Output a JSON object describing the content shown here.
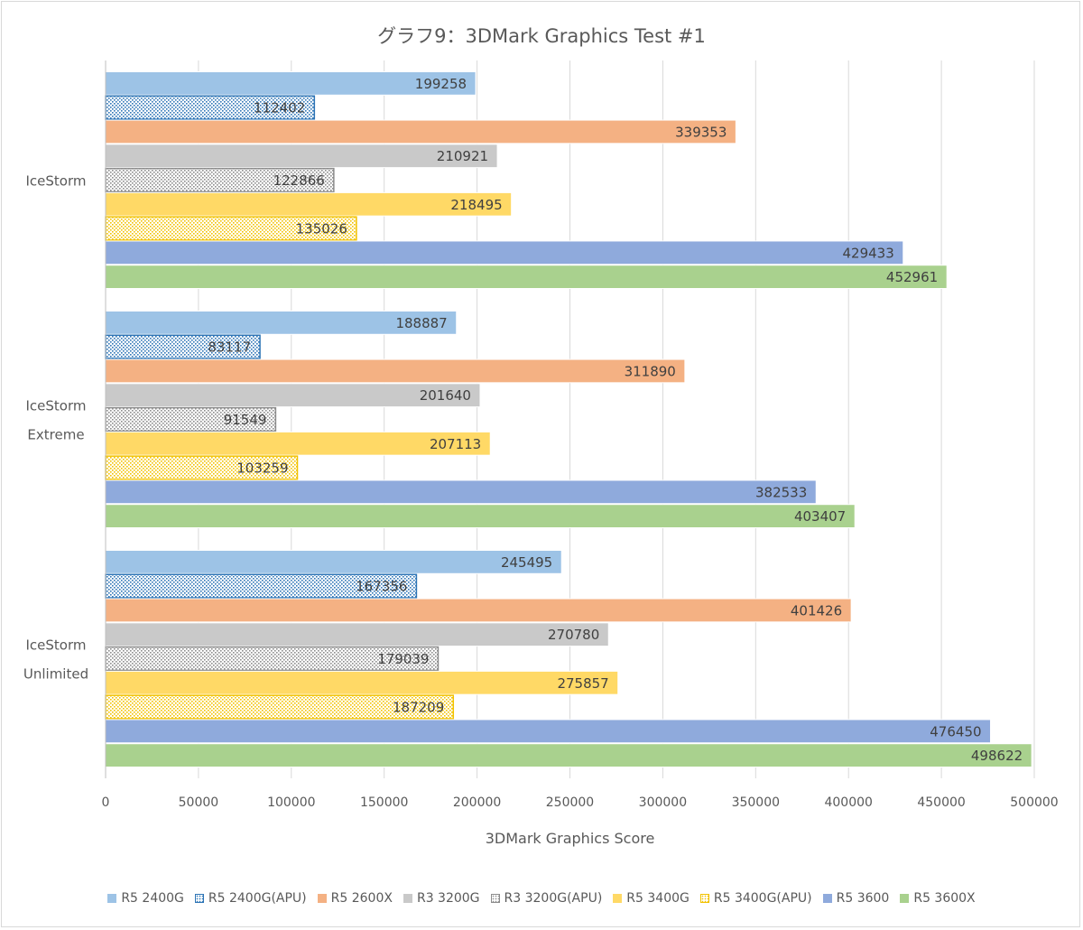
{
  "chart_data": {
    "type": "bar",
    "orientation": "horizontal",
    "title": "グラフ9：3DMark Graphics Test #1",
    "xlabel": "3DMark Graphics Score",
    "ylabel": "",
    "xlim": [
      0,
      500000
    ],
    "x_ticks": [
      0,
      50000,
      100000,
      150000,
      200000,
      250000,
      300000,
      350000,
      400000,
      450000,
      500000
    ],
    "x_tick_labels": [
      "0",
      "50000",
      "100000",
      "150000",
      "200000",
      "250000",
      "300000",
      "350000",
      "400000",
      "450000",
      "500000"
    ],
    "grid": "vertical",
    "legend_position": "bottom",
    "categories": [
      {
        "lines": [
          "IceStorm"
        ]
      },
      {
        "lines": [
          "IceStorm",
          "Extreme"
        ]
      },
      {
        "lines": [
          "IceStorm",
          "Unlimited"
        ]
      }
    ],
    "series": [
      {
        "name": "R5 2400G",
        "color": "#9dc3e6",
        "pattern": "solid",
        "values": [
          199258,
          188887,
          245495
        ]
      },
      {
        "name": "R5 2400G(APU)",
        "color": "#2e75b6",
        "pattern": "dotted",
        "values": [
          112402,
          83117,
          167356
        ]
      },
      {
        "name": "R5 2600X",
        "color": "#f4b183",
        "pattern": "solid",
        "values": [
          339353,
          311890,
          401426
        ]
      },
      {
        "name": "R3 3200G",
        "color": "#c9c9c9",
        "pattern": "solid",
        "values": [
          210921,
          201640,
          270780
        ]
      },
      {
        "name": "R3 3200G(APU)",
        "color": "#8c8c8c",
        "pattern": "dotted",
        "values": [
          122866,
          91549,
          179039
        ]
      },
      {
        "name": "R5 3400G",
        "color": "#ffd966",
        "pattern": "solid",
        "values": [
          218495,
          207113,
          275857
        ]
      },
      {
        "name": "R5 3400G(APU)",
        "color": "#f2c200",
        "pattern": "dotted",
        "values": [
          135026,
          103259,
          187209
        ]
      },
      {
        "name": "R5 3600",
        "color": "#8faadc",
        "pattern": "solid",
        "values": [
          429433,
          382533,
          476450
        ]
      },
      {
        "name": "R5 3600X",
        "color": "#a9d18e",
        "pattern": "solid",
        "values": [
          452961,
          403407,
          498622
        ]
      }
    ]
  }
}
